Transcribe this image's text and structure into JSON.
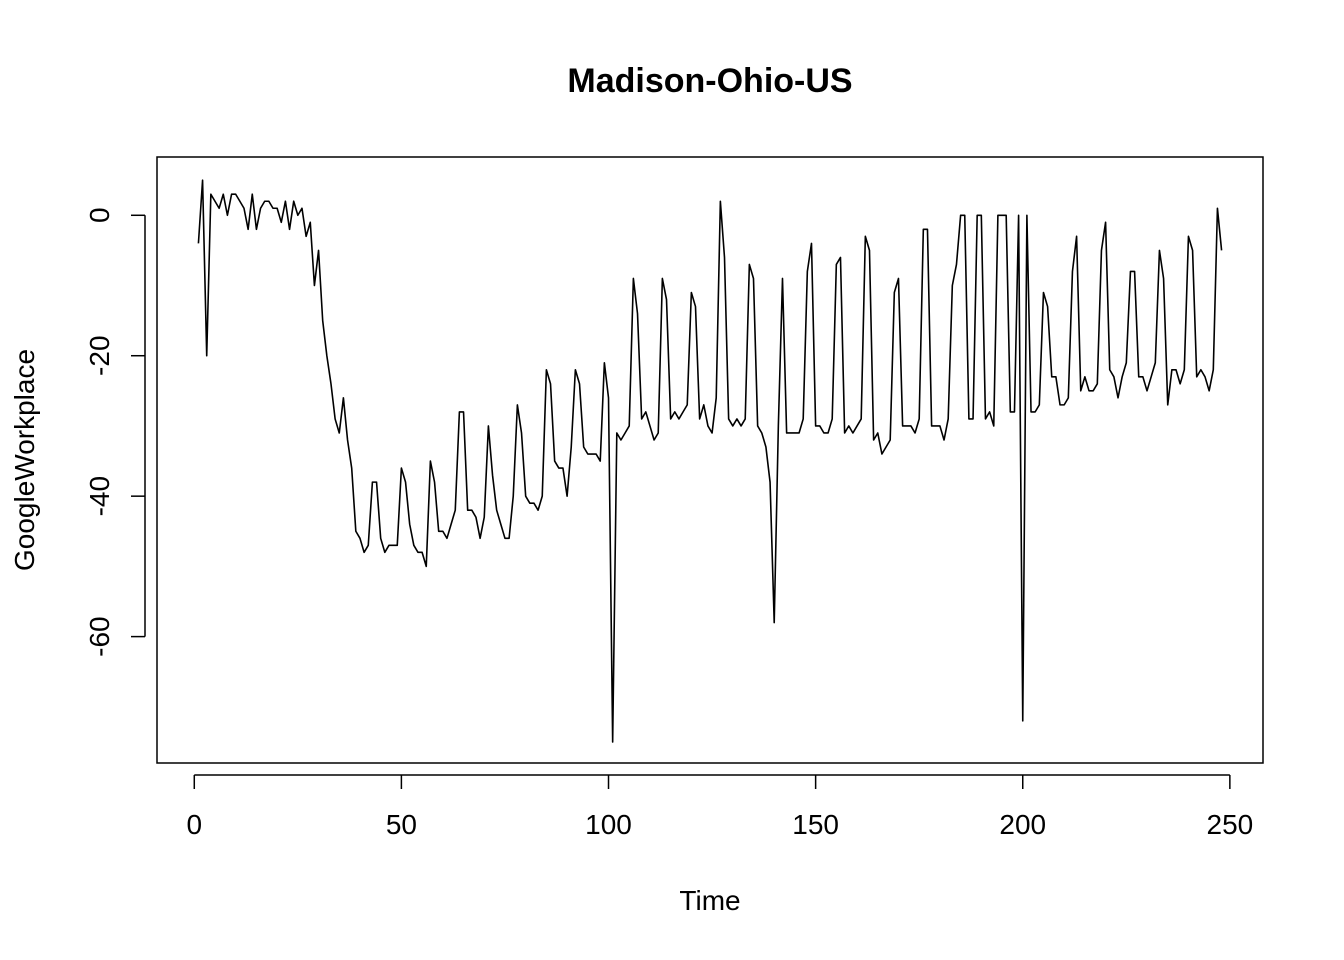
{
  "chart_data": {
    "type": "line",
    "title": "Madison-Ohio-US",
    "xlabel": "Time",
    "ylabel": "GoogleWorkplace",
    "xlim": [
      -9,
      258
    ],
    "ylim": [
      -78,
      8.3
    ],
    "xticks": [
      0,
      50,
      100,
      150,
      200,
      250
    ],
    "yticks": [
      0,
      -20,
      -40,
      -60
    ],
    "xtick_labels": [
      "0",
      "50",
      "100",
      "150",
      "200",
      "250"
    ],
    "ytick_labels": [
      "0",
      "-20",
      "-40",
      "-60"
    ],
    "grid": false,
    "line_color": "#000000",
    "series": [
      {
        "x": [
          1,
          2,
          3,
          4,
          5,
          6,
          7,
          8,
          9,
          10,
          11,
          12,
          13,
          14,
          15,
          16,
          17,
          18,
          19,
          20,
          21,
          22,
          23,
          24,
          25,
          26,
          27,
          28,
          29,
          30,
          31,
          32,
          33,
          34,
          35,
          36,
          37,
          38,
          39,
          40,
          41,
          42,
          43,
          44,
          45,
          46,
          47,
          48,
          49,
          50,
          51,
          52,
          53,
          54,
          55,
          56,
          57,
          58,
          59,
          60,
          61,
          62,
          63,
          64,
          65,
          66,
          67,
          68,
          69,
          70,
          71,
          72,
          73,
          74,
          75,
          76,
          77,
          78,
          79,
          80,
          81,
          82,
          83,
          84,
          85,
          86,
          87,
          88,
          89,
          90,
          91,
          92,
          93,
          94,
          95,
          96,
          97,
          98,
          99,
          100,
          101,
          102,
          103,
          104,
          105,
          106,
          107,
          108,
          109,
          110,
          111,
          112,
          113,
          114,
          115,
          116,
          117,
          118,
          119,
          120,
          121,
          122,
          123,
          124,
          125,
          126,
          127,
          128,
          129,
          130,
          131,
          132,
          133,
          134,
          135,
          136,
          137,
          138,
          139,
          140,
          141,
          142,
          143,
          144,
          145,
          146,
          147,
          148,
          149,
          150,
          151,
          152,
          153,
          154,
          155,
          156,
          157,
          158,
          159,
          160,
          161,
          162,
          163,
          164,
          165,
          166,
          167,
          168,
          169,
          170,
          171,
          172,
          173,
          174,
          175,
          176,
          177,
          178,
          179,
          180,
          181,
          182,
          183,
          184,
          185,
          186,
          187,
          188,
          189,
          190,
          191,
          192,
          193,
          194,
          195,
          196,
          197,
          198,
          199,
          200,
          201,
          202,
          203,
          204,
          205,
          206,
          207,
          208,
          209,
          210,
          211,
          212,
          213,
          214,
          215,
          216,
          217,
          218,
          219,
          220,
          221,
          222,
          223,
          224,
          225,
          226,
          227,
          228,
          229,
          230,
          231,
          232,
          233,
          234,
          235,
          236,
          237,
          238,
          239,
          240,
          241,
          242,
          243,
          244,
          245,
          246,
          247,
          248
        ],
        "values": [
          -4,
          5,
          -20,
          3,
          2,
          1,
          3,
          0,
          3,
          3,
          2,
          1,
          -2,
          3,
          -2,
          1,
          2,
          2,
          1,
          1,
          -1,
          2,
          -2,
          2,
          0,
          1,
          -3,
          -1,
          -10,
          -5,
          -15,
          -20,
          -24,
          -29,
          -31,
          -26,
          -32,
          -36,
          -45,
          -46,
          -48,
          -47,
          -38,
          -38,
          -46,
          -48,
          -47,
          -47,
          -47,
          -36,
          -38,
          -44,
          -47,
          -48,
          -48,
          -50,
          -35,
          -38,
          -45,
          -45,
          -46,
          -44,
          -42,
          -28,
          -28,
          -42,
          -42,
          -43,
          -46,
          -43,
          -30,
          -37,
          -42,
          -44,
          -46,
          -46,
          -40,
          -27,
          -31,
          -40,
          -41,
          -41,
          -42,
          -40,
          -22,
          -24,
          -35,
          -36,
          -36,
          -40,
          -33,
          -22,
          -24,
          -33,
          -34,
          -34,
          -34,
          -35,
          -21,
          -26,
          -75,
          -31,
          -32,
          -31,
          -30,
          -9,
          -14,
          -29,
          -28,
          -30,
          -32,
          -31,
          -9,
          -12,
          -29,
          -28,
          -29,
          -28,
          -27,
          -11,
          -13,
          -29,
          -27,
          -30,
          -31,
          -26,
          2,
          -6,
          -29,
          -30,
          -29,
          -30,
          -29,
          -7,
          -9,
          -30,
          -31,
          -33,
          -38,
          -58,
          -30,
          -9,
          -31,
          -31,
          -31,
          -31,
          -29,
          -8,
          -4,
          -30,
          -30,
          -31,
          -31,
          -29,
          -7,
          -6,
          -31,
          -30,
          -31,
          -30,
          -29,
          -3,
          -5,
          -32,
          -31,
          -34,
          -33,
          -32,
          -11,
          -9,
          -30,
          -30,
          -30,
          -31,
          -29,
          -2,
          -2,
          -30,
          -30,
          -30,
          -32,
          -29,
          -10,
          -7,
          0,
          0,
          -29,
          -29,
          0,
          0,
          -29,
          -28,
          -30,
          0,
          0,
          0,
          -28,
          -28,
          0,
          -72,
          0,
          -28,
          -28,
          -27,
          -11,
          -13,
          -23,
          -23,
          -27,
          -27,
          -26,
          -8,
          -3,
          -25,
          -23,
          -25,
          -25,
          -24,
          -5,
          -1,
          -22,
          -23,
          -26,
          -23,
          -21,
          -8,
          -8,
          -23,
          -23,
          -25,
          -23,
          -21,
          -5,
          -9,
          -27,
          -22,
          -22,
          -24,
          -22,
          -3,
          -5,
          -23,
          -22,
          -23,
          -25,
          -22,
          1,
          -5
        ]
      }
    ]
  }
}
